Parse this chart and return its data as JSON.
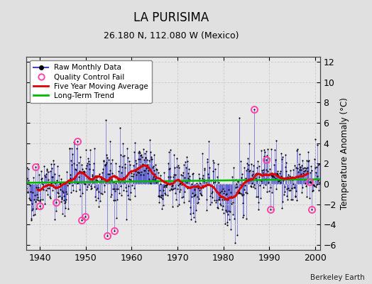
{
  "title": "LA PURISIMA",
  "subtitle": "26.180 N, 112.080 W (Mexico)",
  "ylabel": "Temperature Anomaly (°C)",
  "credit": "Berkeley Earth",
  "xlim": [
    1937,
    2001
  ],
  "ylim": [
    -6.5,
    12.5
  ],
  "yticks": [
    -6,
    -4,
    -2,
    0,
    2,
    4,
    6,
    8,
    10,
    12
  ],
  "xticks": [
    1940,
    1950,
    1960,
    1970,
    1980,
    1990,
    2000
  ],
  "bg_color": "#e0e0e0",
  "plot_bg_color": "#e8e8e8",
  "raw_line_color": "#4444cc",
  "raw_dot_color": "#000000",
  "ma_color": "#dd0000",
  "trend_color": "#00bb00",
  "qc_color": "#ff44aa",
  "grid_color": "#cccccc"
}
